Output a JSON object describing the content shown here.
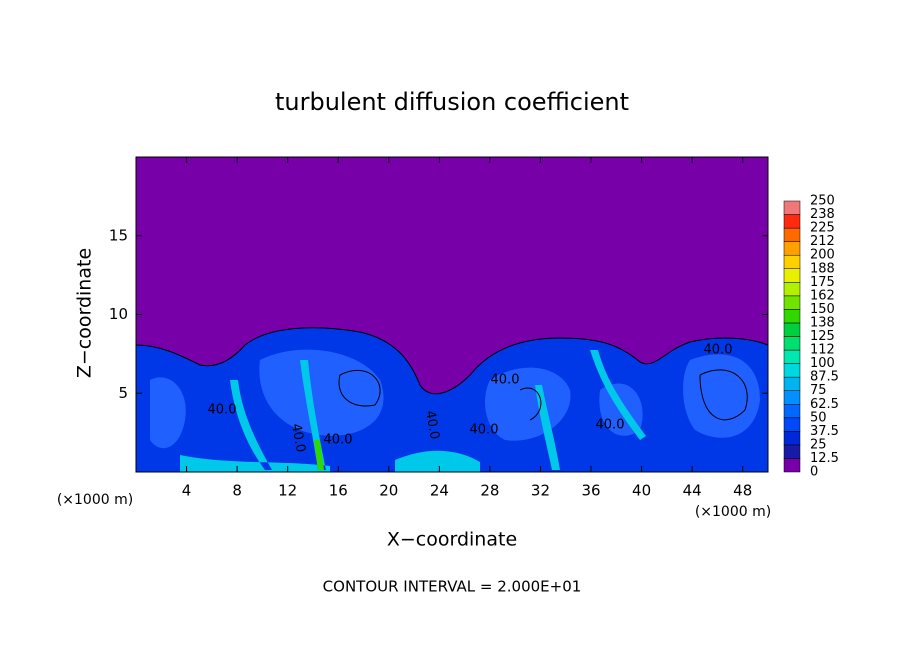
{
  "chart_data": {
    "type": "contour",
    "title": "turbulent diffusion coefficient",
    "xlabel": "X−coordinate",
    "ylabel": "Z−coordinate",
    "axis_unit": "(×1000 m)",
    "xlim": [
      0,
      50
    ],
    "ylim": [
      0,
      20
    ],
    "xticks": [
      4,
      8,
      12,
      16,
      20,
      24,
      28,
      32,
      36,
      40,
      44,
      48
    ],
    "yticks": [
      5,
      10,
      15
    ],
    "colorbar": {
      "levels": [
        0,
        12.5,
        25,
        37.5,
        50,
        62.5,
        75,
        87.5,
        100,
        112,
        125,
        138,
        150,
        162,
        175,
        188,
        200,
        212,
        225,
        238,
        250
      ],
      "colors": [
        "#7800a8",
        "#1a1aa8",
        "#0028d8",
        "#0048f8",
        "#0068ff",
        "#0090ff",
        "#00b4f0",
        "#00d8e0",
        "#00e8b0",
        "#00e070",
        "#00d040",
        "#30d800",
        "#70e400",
        "#b0f000",
        "#e8f000",
        "#ffd000",
        "#ffa000",
        "#ff6a00",
        "#ff2a10",
        "#f07878"
      ]
    },
    "contour_labels": [
      "40.0",
      "40.0",
      "40.0",
      "40.0",
      "40.0",
      "40.0",
      "40.0",
      "40.0"
    ],
    "footer": "CONTOUR INTERVAL = 2.000E+01"
  }
}
